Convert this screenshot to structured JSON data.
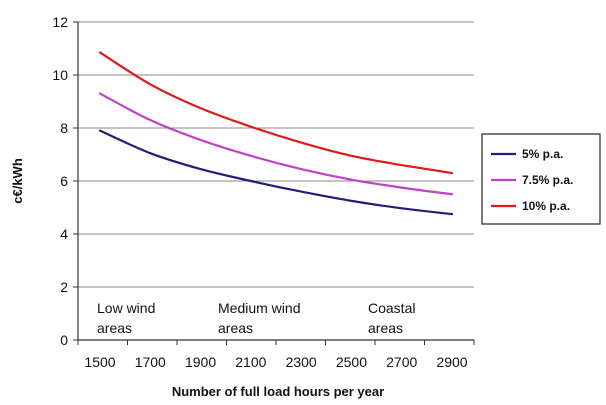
{
  "chart_data": {
    "type": "line",
    "ylabel": "c€/kWh",
    "xlabel": "Number of full load hours per year",
    "ylim": [
      0,
      12
    ],
    "yticks": [
      0,
      2,
      4,
      6,
      8,
      10,
      12
    ],
    "xlim": [
      1500,
      2900
    ],
    "xticks": [
      1500,
      1700,
      1900,
      2100,
      2300,
      2500,
      2700,
      2900
    ],
    "grid": "horizontal",
    "legend_position": "right",
    "series": [
      {
        "name": "5% p.a.",
        "color": "#1f1f7a",
        "x": [
          1500,
          1700,
          1900,
          2100,
          2300,
          2500,
          2700,
          2900
        ],
        "values": [
          7.9,
          7.05,
          6.45,
          6.0,
          5.6,
          5.25,
          4.97,
          4.75
        ]
      },
      {
        "name": "7.5% p.a.",
        "color": "#c040c8",
        "x": [
          1500,
          1700,
          1900,
          2100,
          2300,
          2500,
          2700,
          2900
        ],
        "values": [
          9.3,
          8.3,
          7.55,
          6.95,
          6.45,
          6.05,
          5.75,
          5.5
        ]
      },
      {
        "name": "10% p.a.",
        "color": "#e01818",
        "x": [
          1500,
          1700,
          1900,
          2100,
          2300,
          2500,
          2700,
          2900
        ],
        "values": [
          10.85,
          9.65,
          8.75,
          8.05,
          7.45,
          6.95,
          6.6,
          6.3
        ]
      }
    ],
    "annotations": [
      {
        "line1": "Low wind",
        "line2": "areas"
      },
      {
        "line1": "Medium wind",
        "line2": "areas"
      },
      {
        "line1": "Coastal",
        "line2": "areas"
      }
    ]
  }
}
